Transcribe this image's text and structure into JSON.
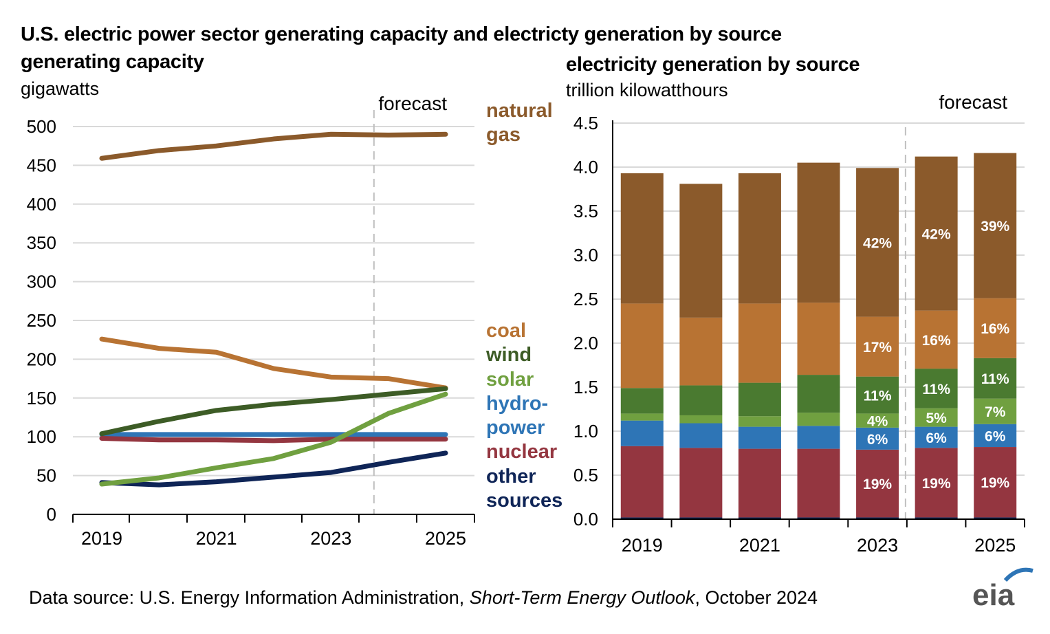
{
  "title": "U.S. electric power sector generating capacity and electricty generation by source",
  "source_prefix": "Data source: U.S. Energy Information Administration, ",
  "source_italic": "Short-Term Energy Outlook",
  "source_suffix": ", October 2024",
  "logo_text": "eia",
  "colors": {
    "natural_gas": "#8B5A2B",
    "coal": "#B87333",
    "wind": "#3D5C26",
    "solar": "#70A040",
    "hydropower": "#2E75B6",
    "nuclear": "#943640",
    "other": "#0F2557",
    "wind_bar": "#4A7A30",
    "grid": "#D9D9D9",
    "forecast_line": "#BFBFBF"
  },
  "chart_data": [
    {
      "type": "line",
      "title": "generating capacity",
      "ylabel": "gigawatts",
      "ylim": [
        0,
        500
      ],
      "yticks": [
        0,
        50,
        100,
        150,
        200,
        250,
        300,
        350,
        400,
        450,
        500
      ],
      "x": [
        2019,
        2020,
        2021,
        2022,
        2023,
        2024,
        2025
      ],
      "xtick_labels": [
        "2019",
        "2021",
        "2023",
        "2025"
      ],
      "forecast_label": "forecast",
      "forecast_start": 2023.75,
      "series": [
        {
          "key": "natural_gas",
          "label_lines": [
            "natural",
            "gas"
          ],
          "values": [
            459,
            469,
            475,
            484,
            490,
            489,
            490
          ]
        },
        {
          "key": "coal",
          "label_lines": [
            "coal"
          ],
          "values": [
            226,
            214,
            209,
            188,
            177,
            175,
            163
          ]
        },
        {
          "key": "wind",
          "label_lines": [
            "wind"
          ],
          "values": [
            104,
            120,
            134,
            142,
            148,
            155,
            162
          ]
        },
        {
          "key": "solar",
          "label_lines": [
            "solar"
          ],
          "values": [
            39,
            47,
            60,
            72,
            93,
            130,
            155
          ]
        },
        {
          "key": "hydropower",
          "label_lines": [
            "hydro-",
            "power"
          ],
          "values": [
            103,
            103,
            103,
            103,
            103,
            103,
            103
          ]
        },
        {
          "key": "nuclear",
          "label_lines": [
            "nuclear"
          ],
          "values": [
            98,
            96,
            96,
            95,
            97,
            97,
            97
          ]
        },
        {
          "key": "other",
          "label_lines": [
            "other",
            "sources"
          ],
          "values": [
            41,
            38,
            42,
            48,
            54,
            67,
            79
          ]
        }
      ]
    },
    {
      "type": "bar",
      "stacked": true,
      "title": "electricity generation by source",
      "ylabel": "trillion kilowatthours",
      "ylim": [
        0,
        4.5
      ],
      "yticks": [
        "0.0",
        "0.5",
        "1.0",
        "1.5",
        "2.0",
        "2.5",
        "3.0",
        "3.5",
        "4.0",
        "4.5"
      ],
      "categories": [
        2019,
        2020,
        2021,
        2022,
        2023,
        2024,
        2025
      ],
      "xtick_labels": [
        "2019",
        "2021",
        "2023",
        "2025"
      ],
      "forecast_label": "forecast",
      "series": [
        {
          "key": "other",
          "values": [
            0.02,
            0.02,
            0.02,
            0.02,
            0.02,
            0.02,
            0.02
          ]
        },
        {
          "key": "nuclear",
          "values": [
            0.81,
            0.79,
            0.78,
            0.78,
            0.77,
            0.79,
            0.8
          ]
        },
        {
          "key": "hydropower",
          "values": [
            0.29,
            0.28,
            0.25,
            0.26,
            0.25,
            0.24,
            0.26
          ]
        },
        {
          "key": "solar",
          "values": [
            0.08,
            0.09,
            0.12,
            0.15,
            0.16,
            0.21,
            0.29
          ]
        },
        {
          "key": "wind",
          "values": [
            0.29,
            0.34,
            0.38,
            0.43,
            0.42,
            0.45,
            0.46
          ]
        },
        {
          "key": "coal",
          "values": [
            0.96,
            0.77,
            0.9,
            0.82,
            0.68,
            0.66,
            0.68
          ]
        },
        {
          "key": "natural_gas",
          "values": [
            1.48,
            1.52,
            1.48,
            1.59,
            1.69,
            1.75,
            1.65
          ]
        }
      ],
      "annotations": {
        "2023": {
          "natural_gas": "42%",
          "coal": "17%",
          "wind": "11%",
          "solar": "4%",
          "hydropower": "6%",
          "nuclear": "19%"
        },
        "2024": {
          "natural_gas": "42%",
          "coal": "16%",
          "wind": "11%",
          "solar": "5%",
          "hydropower": "6%",
          "nuclear": "19%"
        },
        "2025": {
          "natural_gas": "39%",
          "coal": "16%",
          "wind": "11%",
          "solar": "7%",
          "hydropower": "6%",
          "nuclear": "19%"
        }
      }
    }
  ]
}
